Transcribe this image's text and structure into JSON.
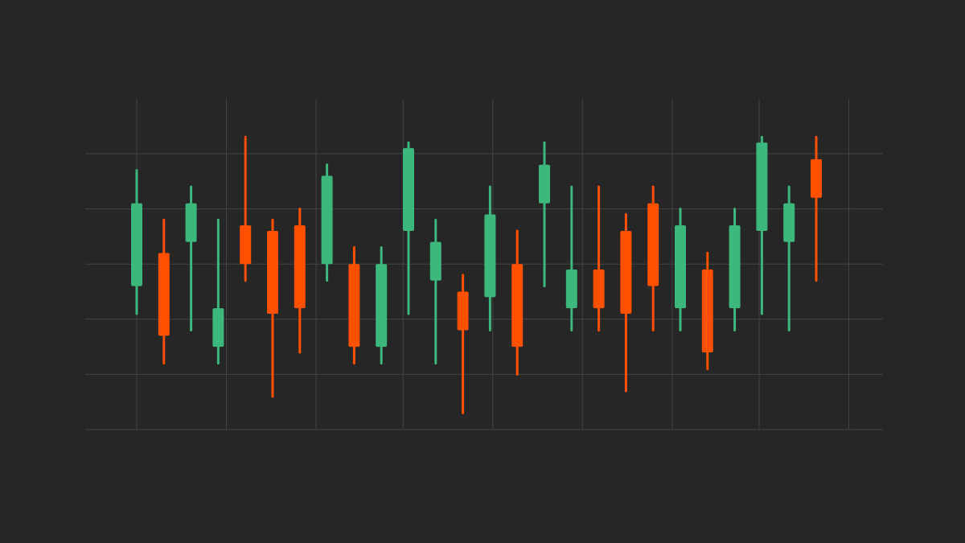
{
  "colors": {
    "background": "#262626",
    "grid": "#444444",
    "up": "#3DB87C",
    "down": "#FF5000"
  },
  "chart_data": {
    "type": "candlestick",
    "title": "",
    "xlabel": "",
    "ylabel": "",
    "ylim": [
      0,
      6
    ],
    "grid": true,
    "legend": "none",
    "x_gridlines": [
      0,
      3.3,
      6.6,
      9.8,
      13.1,
      16.4,
      19.7,
      22.9,
      26.2
    ],
    "y_gridlines": [
      0,
      1,
      2,
      3,
      4,
      5
    ],
    "candles": [
      {
        "index": 0,
        "open": 2.6,
        "high": 4.7,
        "low": 2.1,
        "close": 4.1,
        "direction": "up"
      },
      {
        "index": 1,
        "open": 3.2,
        "high": 3.8,
        "low": 1.2,
        "close": 1.7,
        "direction": "down"
      },
      {
        "index": 2,
        "open": 3.4,
        "high": 4.4,
        "low": 1.8,
        "close": 4.1,
        "direction": "up"
      },
      {
        "index": 3,
        "open": 1.5,
        "high": 3.8,
        "low": 1.2,
        "close": 2.2,
        "direction": "up"
      },
      {
        "index": 4,
        "open": 3.7,
        "high": 5.3,
        "low": 2.7,
        "close": 3.0,
        "direction": "down"
      },
      {
        "index": 5,
        "open": 3.6,
        "high": 3.8,
        "low": 0.6,
        "close": 2.1,
        "direction": "down"
      },
      {
        "index": 6,
        "open": 3.7,
        "high": 4.0,
        "low": 1.4,
        "close": 2.2,
        "direction": "down"
      },
      {
        "index": 7,
        "open": 3.0,
        "high": 4.8,
        "low": 2.7,
        "close": 4.6,
        "direction": "up"
      },
      {
        "index": 8,
        "open": 3.0,
        "high": 3.3,
        "low": 1.2,
        "close": 1.5,
        "direction": "down"
      },
      {
        "index": 9,
        "open": 1.5,
        "high": 3.3,
        "low": 1.2,
        "close": 3.0,
        "direction": "up"
      },
      {
        "index": 10,
        "open": 3.6,
        "high": 5.2,
        "low": 2.1,
        "close": 5.1,
        "direction": "up"
      },
      {
        "index": 11,
        "open": 2.7,
        "high": 3.8,
        "low": 1.2,
        "close": 3.4,
        "direction": "up"
      },
      {
        "index": 12,
        "open": 2.5,
        "high": 2.8,
        "low": 0.3,
        "close": 1.8,
        "direction": "down"
      },
      {
        "index": 13,
        "open": 2.4,
        "high": 4.4,
        "low": 1.8,
        "close": 3.9,
        "direction": "up"
      },
      {
        "index": 14,
        "open": 3.0,
        "high": 3.6,
        "low": 1.0,
        "close": 1.5,
        "direction": "down"
      },
      {
        "index": 15,
        "open": 4.1,
        "high": 5.2,
        "low": 2.6,
        "close": 4.8,
        "direction": "up"
      },
      {
        "index": 16,
        "open": 2.2,
        "high": 4.4,
        "low": 1.8,
        "close": 2.9,
        "direction": "up"
      },
      {
        "index": 17,
        "open": 2.9,
        "high": 4.4,
        "low": 1.8,
        "close": 2.2,
        "direction": "down"
      },
      {
        "index": 18,
        "open": 3.6,
        "high": 3.9,
        "low": 0.7,
        "close": 2.1,
        "direction": "down"
      },
      {
        "index": 19,
        "open": 4.1,
        "high": 4.4,
        "low": 1.8,
        "close": 2.6,
        "direction": "down"
      },
      {
        "index": 20,
        "open": 2.2,
        "high": 4.0,
        "low": 1.8,
        "close": 3.7,
        "direction": "up"
      },
      {
        "index": 21,
        "open": 2.9,
        "high": 3.2,
        "low": 1.1,
        "close": 1.4,
        "direction": "down"
      },
      {
        "index": 22,
        "open": 2.2,
        "high": 4.0,
        "low": 1.8,
        "close": 3.7,
        "direction": "up"
      },
      {
        "index": 23,
        "open": 3.6,
        "high": 5.3,
        "low": 2.1,
        "close": 5.2,
        "direction": "up"
      },
      {
        "index": 24,
        "open": 3.4,
        "high": 4.4,
        "low": 1.8,
        "close": 4.1,
        "direction": "up"
      },
      {
        "index": 25,
        "open": 4.9,
        "high": 5.3,
        "low": 2.7,
        "close": 4.2,
        "direction": "down"
      }
    ]
  }
}
